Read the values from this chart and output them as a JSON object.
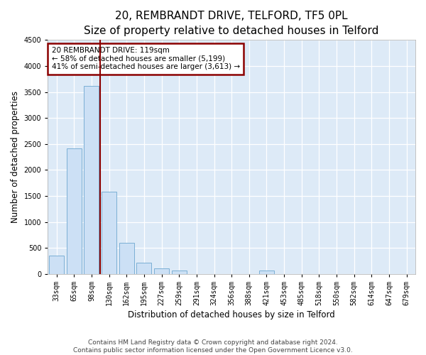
{
  "title": "20, REMBRANDT DRIVE, TELFORD, TF5 0PL",
  "subtitle": "Size of property relative to detached houses in Telford",
  "xlabel": "Distribution of detached houses by size in Telford",
  "ylabel": "Number of detached properties",
  "categories": [
    "33sqm",
    "65sqm",
    "98sqm",
    "130sqm",
    "162sqm",
    "195sqm",
    "227sqm",
    "259sqm",
    "291sqm",
    "324sqm",
    "356sqm",
    "388sqm",
    "421sqm",
    "453sqm",
    "485sqm",
    "518sqm",
    "550sqm",
    "582sqm",
    "614sqm",
    "647sqm",
    "679sqm"
  ],
  "values": [
    350,
    2420,
    3620,
    1580,
    600,
    220,
    100,
    60,
    0,
    0,
    0,
    0,
    60,
    0,
    0,
    0,
    0,
    0,
    0,
    0,
    0
  ],
  "bar_color": "#cce0f5",
  "bar_edge_color": "#7bafd4",
  "vline_color": "#8b0000",
  "annotation_line1": "20 REMBRANDT DRIVE: 119sqm",
  "annotation_line2": "← 58% of detached houses are smaller (5,199)",
  "annotation_line3": "41% of semi-detached houses are larger (3,613) →",
  "annotation_box_color": "#8b0000",
  "ylim": [
    0,
    4500
  ],
  "yticks": [
    0,
    500,
    1000,
    1500,
    2000,
    2500,
    3000,
    3500,
    4000,
    4500
  ],
  "footnote_line1": "Contains HM Land Registry data © Crown copyright and database right 2024.",
  "footnote_line2": "Contains public sector information licensed under the Open Government Licence v3.0.",
  "plot_bg_color": "#ddeaf7",
  "fig_bg_color": "#ffffff",
  "title_fontsize": 11,
  "subtitle_fontsize": 9.5,
  "ylabel_fontsize": 8.5,
  "xlabel_fontsize": 8.5,
  "tick_fontsize": 7,
  "annotation_fontsize": 7.5,
  "footnote_fontsize": 6.5
}
